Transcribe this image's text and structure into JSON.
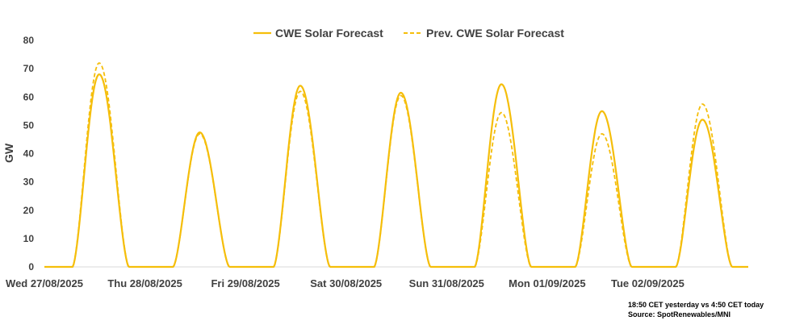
{
  "chart_data": {
    "type": "line",
    "title": "",
    "xlabel": "",
    "ylabel": "GW",
    "ylim": [
      0,
      80
    ],
    "yticks": [
      0,
      10,
      20,
      30,
      40,
      50,
      60,
      70,
      80
    ],
    "grid": false,
    "legend_position": "top-center",
    "categories": [
      "Wed 27/08/2025",
      "Thu 28/08/2025",
      "Fri 29/08/2025",
      "Sat 30/08/2025",
      "Sun 31/08/2025",
      "Mon 01/09/2025",
      "Tue 02/09/2025"
    ],
    "series": [
      {
        "name": "CWE Solar Forecast",
        "style": "solid",
        "color": "#F5BE0B",
        "daily_peaks_gw": [
          68,
          47.5,
          64,
          61.5,
          64.5,
          55,
          52
        ]
      },
      {
        "name": "Prev. CWE Solar Forecast",
        "style": "dashed",
        "color": "#F5BE0B",
        "daily_peaks_gw": [
          72,
          47,
          62,
          60.5,
          54.5,
          47,
          57.5
        ]
      }
    ]
  },
  "note": {
    "line1": "18:50 CET yesterday vs  4:50 CET today",
    "line2": "Source: SpotRenewables/MNI"
  }
}
